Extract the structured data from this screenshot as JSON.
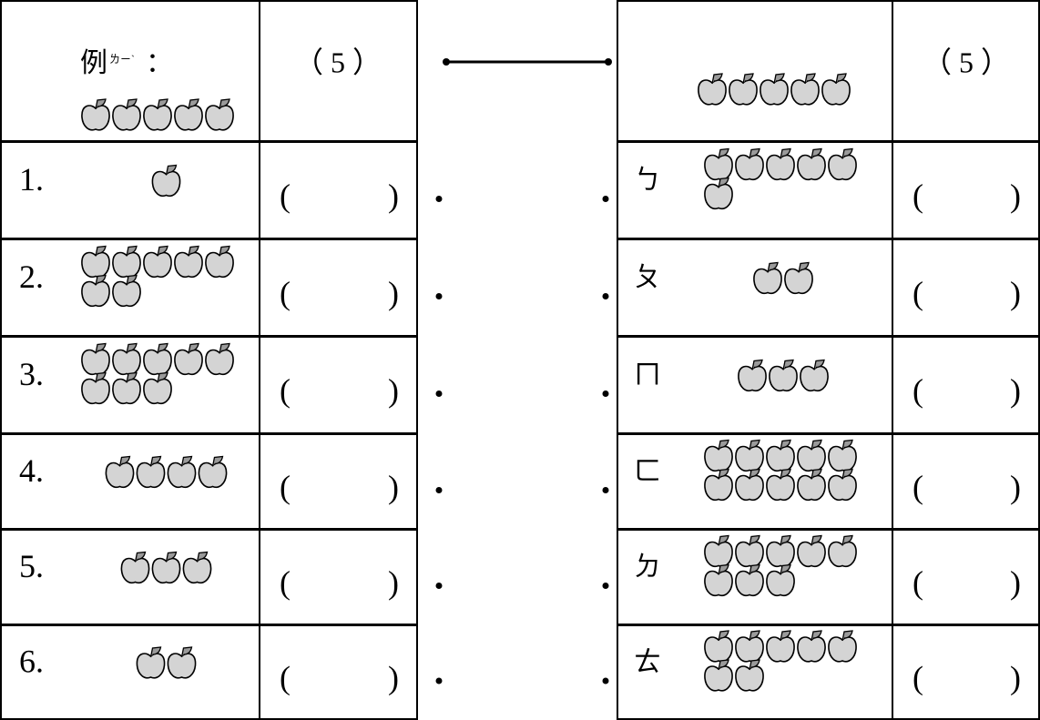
{
  "example": {
    "label": "例",
    "ruby": "ㄌㄧˋ",
    "colon": "：",
    "apples": 5,
    "answer": "（ 5 ）",
    "right_apples": 5,
    "right_answer": "（ 5 ）"
  },
  "blank": {
    "open": "(",
    "close": ")"
  },
  "left_rows": [
    {
      "label": "1.",
      "apples": 1
    },
    {
      "label": "2.",
      "apples": 7
    },
    {
      "label": "3.",
      "apples": 8
    },
    {
      "label": "4.",
      "apples": 4
    },
    {
      "label": "5.",
      "apples": 3
    },
    {
      "label": "6.",
      "apples": 2
    }
  ],
  "right_rows": [
    {
      "label": "ㄅ",
      "apples": 6
    },
    {
      "label": "ㄆ",
      "apples": 2
    },
    {
      "label": "ㄇ",
      "apples": 3
    },
    {
      "label": "ㄈ",
      "apples": 10
    },
    {
      "label": "ㄉ",
      "apples": 8
    },
    {
      "label": "ㄊ",
      "apples": 7
    }
  ]
}
